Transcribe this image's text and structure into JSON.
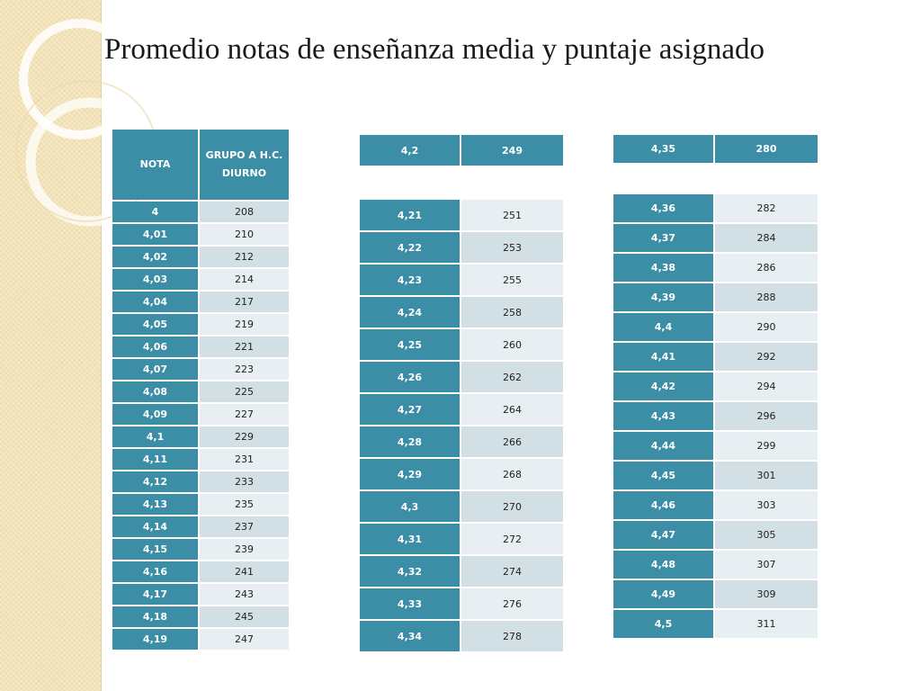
{
  "title": "Promedio notas de enseñanza media y puntaje asignado",
  "colors": {
    "header": "#3b8ea5",
    "row_dark": "#d2dfe5",
    "row_light": "#e8eff2",
    "band": "#f3e3b8"
  },
  "table1": {
    "headers": [
      "NOTA",
      "GRUPO A H.C. DIURNO"
    ],
    "rows": [
      [
        "4",
        "208"
      ],
      [
        "4,01",
        "210"
      ],
      [
        "4,02",
        "212"
      ],
      [
        "4,03",
        "214"
      ],
      [
        "4,04",
        "217"
      ],
      [
        "4,05",
        "219"
      ],
      [
        "4,06",
        "221"
      ],
      [
        "4,07",
        "223"
      ],
      [
        "4,08",
        "225"
      ],
      [
        "4,09",
        "227"
      ],
      [
        "4,1",
        "229"
      ],
      [
        "4,11",
        "231"
      ],
      [
        "4,12",
        "233"
      ],
      [
        "4,13",
        "235"
      ],
      [
        "4,14",
        "237"
      ],
      [
        "4,15",
        "239"
      ],
      [
        "4,16",
        "241"
      ],
      [
        "4,17",
        "243"
      ],
      [
        "4,18",
        "245"
      ],
      [
        "4,19",
        "247"
      ]
    ]
  },
  "table2": {
    "rows": [
      [
        "4,2",
        "249"
      ],
      [
        "4,21",
        "251"
      ],
      [
        "4,22",
        "253"
      ],
      [
        "4,23",
        "255"
      ],
      [
        "4,24",
        "258"
      ],
      [
        "4,25",
        "260"
      ],
      [
        "4,26",
        "262"
      ],
      [
        "4,27",
        "264"
      ],
      [
        "4,28",
        "266"
      ],
      [
        "4,29",
        "268"
      ],
      [
        "4,3",
        "270"
      ],
      [
        "4,31",
        "272"
      ],
      [
        "4,32",
        "274"
      ],
      [
        "4,33",
        "276"
      ],
      [
        "4,34",
        "278"
      ]
    ]
  },
  "table3": {
    "rows": [
      [
        "4,35",
        "280"
      ],
      [
        "4,36",
        "282"
      ],
      [
        "4,37",
        "284"
      ],
      [
        "4,38",
        "286"
      ],
      [
        "4,39",
        "288"
      ],
      [
        "4,4",
        "290"
      ],
      [
        "4,41",
        "292"
      ],
      [
        "4,42",
        "294"
      ],
      [
        "4,43",
        "296"
      ],
      [
        "4,44",
        "299"
      ],
      [
        "4,45",
        "301"
      ],
      [
        "4,46",
        "303"
      ],
      [
        "4,47",
        "305"
      ],
      [
        "4,48",
        "307"
      ],
      [
        "4,49",
        "309"
      ],
      [
        "4,5",
        "311"
      ]
    ]
  }
}
